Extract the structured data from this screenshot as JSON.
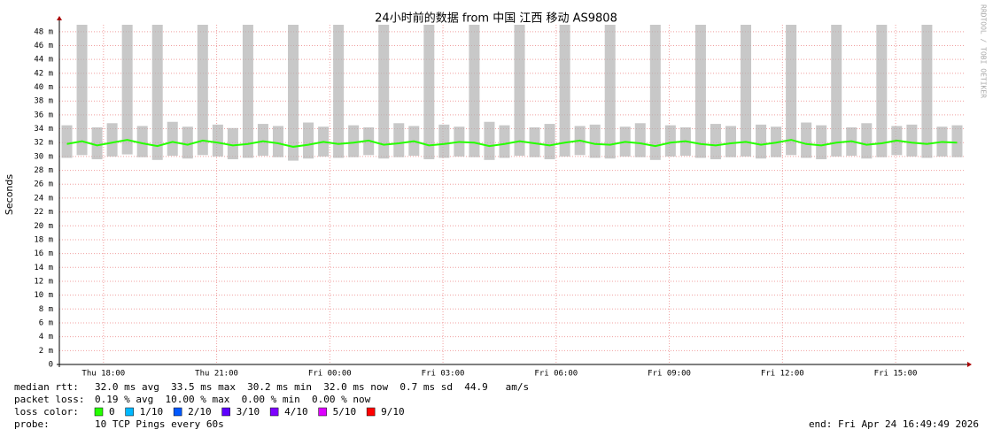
{
  "chart_data": {
    "type": "smoke",
    "title": "24小时前的数据 from 中国 江西 移动 AS9808",
    "y_label": "Seconds",
    "watermark": "RRDTOOL / TOBI OETIKER",
    "xlim": [
      0,
      24
    ],
    "xticks": [
      {
        "value": 1.17,
        "label": "Thu 18:00"
      },
      {
        "value": 4.17,
        "label": "Thu 21:00"
      },
      {
        "value": 7.17,
        "label": "Fri 00:00"
      },
      {
        "value": 10.17,
        "label": "Fri 03:00"
      },
      {
        "value": 13.17,
        "label": "Fri 06:00"
      },
      {
        "value": 16.17,
        "label": "Fri 09:00"
      },
      {
        "value": 19.17,
        "label": "Fri 12:00"
      },
      {
        "value": 22.17,
        "label": "Fri 15:00"
      }
    ],
    "ylim": [
      0,
      0.049
    ],
    "yticks": [
      0,
      {
        "value": 0.002,
        "label": "2 m"
      },
      {
        "value": 0.004,
        "label": "4 m"
      },
      {
        "value": 0.006,
        "label": "6 m"
      },
      {
        "value": 0.008,
        "label": "8 m"
      },
      {
        "value": 0.01,
        "label": "10 m"
      },
      {
        "value": 0.012,
        "label": "12 m"
      },
      {
        "value": 0.014,
        "label": "14 m"
      },
      {
        "value": 0.016,
        "label": "16 m"
      },
      {
        "value": 0.018,
        "label": "18 m"
      },
      {
        "value": 0.02,
        "label": "20 m"
      },
      {
        "value": 0.022,
        "label": "22 m"
      },
      {
        "value": 0.024,
        "label": "24 m"
      },
      {
        "value": 0.026,
        "label": "26 m"
      },
      {
        "value": 0.028,
        "label": "28 m"
      },
      {
        "value": 0.03,
        "label": "30 m"
      },
      {
        "value": 0.032,
        "label": "32 m"
      },
      {
        "value": 0.034,
        "label": "34 m"
      },
      {
        "value": 0.036,
        "label": "36 m"
      },
      {
        "value": 0.038,
        "label": "38 m"
      },
      {
        "value": 0.04,
        "label": "40 m"
      },
      {
        "value": 0.042,
        "label": "42 m"
      },
      {
        "value": 0.044,
        "label": "44 m"
      },
      {
        "value": 0.046,
        "label": "46 m"
      },
      {
        "value": 0.048,
        "label": "48 m"
      }
    ],
    "grid": true,
    "x": [
      0.2,
      0.6,
      1,
      1.4,
      1.8,
      2.2,
      2.6,
      3,
      3.4,
      3.8,
      4.2,
      4.6,
      5,
      5.4,
      5.8,
      6.2,
      6.6,
      7,
      7.4,
      7.8,
      8.2,
      8.6,
      9,
      9.4,
      9.8,
      10.2,
      10.6,
      11,
      11.4,
      11.8,
      12.2,
      12.6,
      13,
      13.4,
      13.8,
      14.2,
      14.6,
      15,
      15.4,
      15.8,
      16.2,
      16.6,
      17,
      17.4,
      17.8,
      18.2,
      18.6,
      19,
      19.4,
      19.8,
      20.2,
      20.6,
      21,
      21.4,
      21.8,
      22.2,
      22.6,
      23,
      23.4,
      23.8
    ],
    "smoke_color": "#b0b0b0",
    "smoke_high": [
      0.0345,
      0.049,
      0.0342,
      0.0348,
      0.049,
      0.0344,
      0.049,
      0.035,
      0.0343,
      0.049,
      0.0346,
      0.0341,
      0.049,
      0.0347,
      0.0344,
      0.049,
      0.0349,
      0.0343,
      0.049,
      0.0345,
      0.0342,
      0.049,
      0.0348,
      0.0344,
      0.049,
      0.0346,
      0.0343,
      0.049,
      0.035,
      0.0345,
      0.049,
      0.0342,
      0.0347,
      0.049,
      0.0344,
      0.0346,
      0.049,
      0.0343,
      0.0348,
      0.049,
      0.0345,
      0.0342,
      0.049,
      0.0347,
      0.0344,
      0.049,
      0.0346,
      0.0343,
      0.049,
      0.0349,
      0.0345,
      0.049,
      0.0342,
      0.0348,
      0.049,
      0.0344,
      0.0346,
      0.049,
      0.0343,
      0.0345
    ],
    "smoke_low": [
      0.0298,
      0.0302,
      0.0296,
      0.03,
      0.0303,
      0.0299,
      0.0295,
      0.0301,
      0.0297,
      0.0302,
      0.03,
      0.0296,
      0.0298,
      0.0301,
      0.0299,
      0.0294,
      0.0297,
      0.03,
      0.0298,
      0.0299,
      0.0302,
      0.0297,
      0.0299,
      0.0301,
      0.0296,
      0.0298,
      0.03,
      0.0299,
      0.0295,
      0.0298,
      0.0301,
      0.0299,
      0.0296,
      0.03,
      0.0302,
      0.0298,
      0.0297,
      0.03,
      0.0299,
      0.0295,
      0.03,
      0.0301,
      0.0298,
      0.0296,
      0.0299,
      0.03,
      0.0297,
      0.0299,
      0.0302,
      0.0298,
      0.0296,
      0.03,
      0.0301,
      0.0297,
      0.0299,
      0.0302,
      0.03,
      0.0298,
      0.03,
      0.0299
    ],
    "series": [
      {
        "color": "#26ff00",
        "values": [
          0.0318,
          0.0322,
          0.0316,
          0.032,
          0.0324,
          0.0319,
          0.0315,
          0.0321,
          0.0317,
          0.0323,
          0.032,
          0.0316,
          0.0318,
          0.0322,
          0.0319,
          0.0314,
          0.0317,
          0.0321,
          0.0318,
          0.032,
          0.0323,
          0.0317,
          0.0319,
          0.0322,
          0.0316,
          0.0318,
          0.0321,
          0.032,
          0.0315,
          0.0318,
          0.0322,
          0.0319,
          0.0316,
          0.032,
          0.0323,
          0.0318,
          0.0317,
          0.0321,
          0.0319,
          0.0315,
          0.032,
          0.0322,
          0.0318,
          0.0316,
          0.0319,
          0.0321,
          0.0317,
          0.032,
          0.0324,
          0.0318,
          0.0316,
          0.032,
          0.0322,
          0.0317,
          0.0319,
          0.0323,
          0.032,
          0.0318,
          0.0321,
          0.032
        ]
      }
    ],
    "stats": [
      {
        "label": "median rtt:",
        "text": "32.0 ms avg  33.5 ms max  30.2 ms min  32.0 ms now  0.7 ms sd  44.9   am/s"
      },
      {
        "label": "packet loss:",
        "text": "0.19 % avg  10.00 % max  0.00 % min  0.00 % now"
      }
    ],
    "loss_label": "loss color:",
    "loss_colors": [
      {
        "label": "0",
        "color": "#26ff00"
      },
      {
        "label": "1/10",
        "color": "#00b8ff"
      },
      {
        "label": "2/10",
        "color": "#0059ff"
      },
      {
        "label": "3/10",
        "color": "#5e00ff"
      },
      {
        "label": "4/10",
        "color": "#7e00ff"
      },
      {
        "label": "5/10",
        "color": "#dd00ff"
      },
      {
        "label": "9/10",
        "color": "#ff0000"
      }
    ],
    "probe_label": "probe:",
    "probe": "10 TCP Pings every 60s",
    "end": "end: Fri Apr 24 16:49:49 2026"
  }
}
